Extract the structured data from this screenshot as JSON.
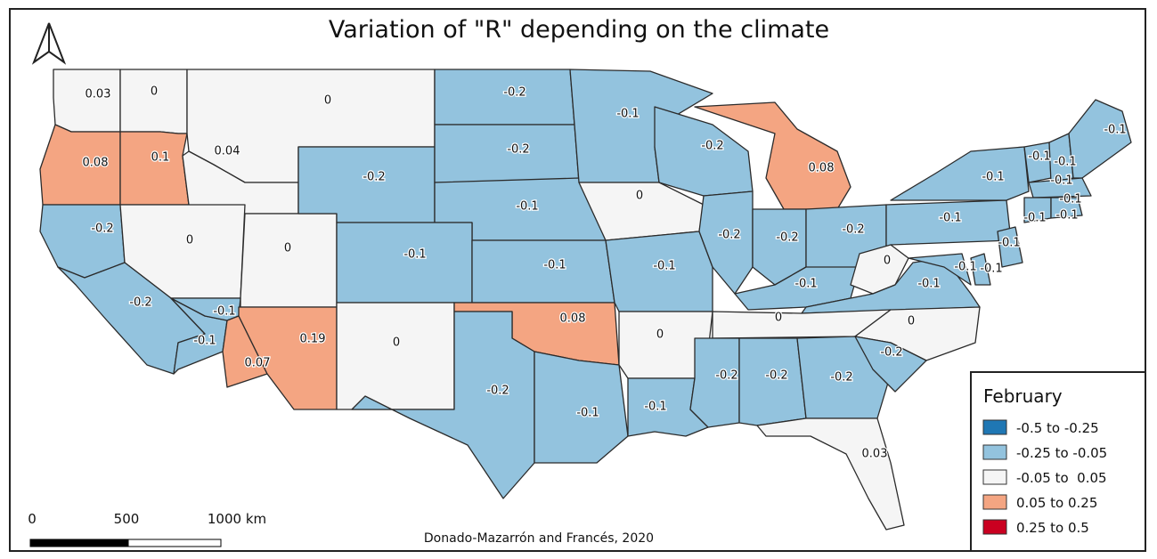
{
  "title": "Variation of \"R\" depending on the climate",
  "credit": "Donado-Mazarrón and Francés, 2020",
  "scale_bar": {
    "labels": [
      "0",
      "500",
      "1000 km"
    ]
  },
  "north_arrow": "north-arrow-icon",
  "legend": {
    "title": "February",
    "classes": [
      {
        "label": "-0.5 to -0.25",
        "color": "#1f77b4"
      },
      {
        "label": "-0.25 to -0.05",
        "color": "#93c3de"
      },
      {
        "label": "-0.05 to  0.05",
        "color": "#f5f5f5"
      },
      {
        "label": "0.05 to 0.25",
        "color": "#f4a582"
      },
      {
        "label": "0.25 to 0.5",
        "color": "#ca0020"
      }
    ]
  },
  "states": {
    "WA": "0.03",
    "ID": "0",
    "MT": "0",
    "OR": "0.08",
    "ID_S": "0.1",
    "WY_W": "0.04",
    "WY": "-0.2",
    "ND": "-0.2",
    "SD": "-0.2",
    "MN": "-0.1",
    "WI": "-0.2",
    "MI": "0.08",
    "NE": "-0.1",
    "IA": "0",
    "CA_N": "-0.2",
    "NV": "0",
    "UT": "0",
    "CO": "-0.1",
    "KS": "-0.1",
    "MO": "-0.1",
    "IL": "-0.2",
    "IN": "-0.2",
    "OH": "-0.2",
    "PA": "-0.1",
    "NY": "-0.1",
    "CA": "-0.2",
    "CA_S": "-0.1",
    "NV_S": "-0.1",
    "AZ_W": "0.07",
    "AZ": "0.19",
    "NM": "0",
    "OK": "0.08",
    "AR": "0",
    "KY": "-0.1",
    "WV": "0",
    "VA": "-0.1",
    "TN": "0",
    "NC": "0",
    "TX": "-0.2",
    "TX_E": "-0.1",
    "LA": "-0.1",
    "MS": "-0.2",
    "AL": "-0.2",
    "GA": "-0.2",
    "SC": "-0.2",
    "FL": "0.03",
    "ME": "-0.1",
    "VT": "-0.1",
    "NH": "-0.1",
    "MA": "-0.1",
    "CT": "-0.1",
    "RI": "-0.1",
    "NJ": "-0.1",
    "DE": "-0.1",
    "MD": "-0.1"
  }
}
